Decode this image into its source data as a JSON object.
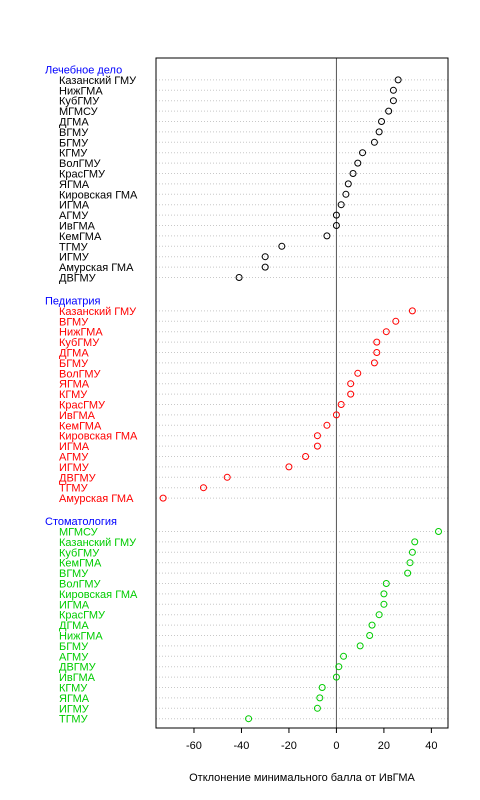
{
  "chart_data": {
    "type": "scatter",
    "subtype": "grouped-dotplot",
    "xlabel": "Отклонение минимального балла от ИвГМА",
    "xlim": [
      -76,
      47
    ],
    "xticks": [
      -60,
      -40,
      -20,
      0,
      20,
      40
    ],
    "reference_line": 0,
    "grid": "horizontal-dotted",
    "groups": [
      {
        "name": "Лечебное дело",
        "color": "#000000",
        "items": [
          {
            "label": "Казанский ГМУ",
            "value": 26
          },
          {
            "label": "НижГМА",
            "value": 24
          },
          {
            "label": "КубГМУ",
            "value": 24
          },
          {
            "label": "МГМСУ",
            "value": 22
          },
          {
            "label": "ДГМА",
            "value": 19
          },
          {
            "label": "ВГМУ",
            "value": 18
          },
          {
            "label": "БГМУ",
            "value": 16
          },
          {
            "label": "КГМУ",
            "value": 11
          },
          {
            "label": "ВолГМУ",
            "value": 9
          },
          {
            "label": "КрасГМУ",
            "value": 7
          },
          {
            "label": "ЯГМА",
            "value": 5
          },
          {
            "label": "Кировская ГМА",
            "value": 4
          },
          {
            "label": "ИГМА",
            "value": 2
          },
          {
            "label": "АГМУ",
            "value": 0
          },
          {
            "label": "ИвГМА",
            "value": 0
          },
          {
            "label": "КемГМА",
            "value": -4
          },
          {
            "label": "ТГМУ",
            "value": -23
          },
          {
            "label": "ИГМУ",
            "value": -30
          },
          {
            "label": "Амурская ГМА",
            "value": -30
          },
          {
            "label": "ДВГМУ",
            "value": -41
          }
        ]
      },
      {
        "name": "Педиатрия",
        "color": "#ff0000",
        "items": [
          {
            "label": "Казанский ГМУ",
            "value": 32
          },
          {
            "label": "ВГМУ",
            "value": 25
          },
          {
            "label": "НижГМА",
            "value": 21
          },
          {
            "label": "КубГМУ",
            "value": 17
          },
          {
            "label": "ДГМА",
            "value": 17
          },
          {
            "label": "БГМУ",
            "value": 16
          },
          {
            "label": "ВолГМУ",
            "value": 9
          },
          {
            "label": "ЯГМА",
            "value": 6
          },
          {
            "label": "КГМУ",
            "value": 6
          },
          {
            "label": "КрасГМУ",
            "value": 2
          },
          {
            "label": "ИвГМА",
            "value": 0
          },
          {
            "label": "КемГМА",
            "value": -4
          },
          {
            "label": "Кировская ГМА",
            "value": -8
          },
          {
            "label": "ИГМА",
            "value": -8
          },
          {
            "label": "АГМУ",
            "value": -13
          },
          {
            "label": "ИГМУ",
            "value": -20
          },
          {
            "label": "ДВГМУ",
            "value": -46
          },
          {
            "label": "ТГМУ",
            "value": -56
          },
          {
            "label": "Амурская ГМА",
            "value": -73
          }
        ]
      },
      {
        "name": "Стоматология",
        "color": "#00cc00",
        "items": [
          {
            "label": "МГМСУ",
            "value": 43
          },
          {
            "label": "Казанский ГМУ",
            "value": 33
          },
          {
            "label": "КубГМУ",
            "value": 32
          },
          {
            "label": "КемГМА",
            "value": 31
          },
          {
            "label": "ВГМУ",
            "value": 30
          },
          {
            "label": "ВолГМУ",
            "value": 21
          },
          {
            "label": "Кировская ГМА",
            "value": 20
          },
          {
            "label": "ИГМА",
            "value": 20
          },
          {
            "label": "КрасГМУ",
            "value": 18
          },
          {
            "label": "ДГМА",
            "value": 15
          },
          {
            "label": "НижГМА",
            "value": 14
          },
          {
            "label": "БГМУ",
            "value": 10
          },
          {
            "label": "АГМУ",
            "value": 3
          },
          {
            "label": "ДВГМУ",
            "value": 1
          },
          {
            "label": "ИвГМА",
            "value": 0
          },
          {
            "label": "КГМУ",
            "value": -6
          },
          {
            "label": "ЯГМА",
            "value": -7
          },
          {
            "label": "ИГМУ",
            "value": -8
          },
          {
            "label": "ТГМУ",
            "value": -37
          }
        ]
      }
    ],
    "group_label_color": "#0000ff"
  }
}
